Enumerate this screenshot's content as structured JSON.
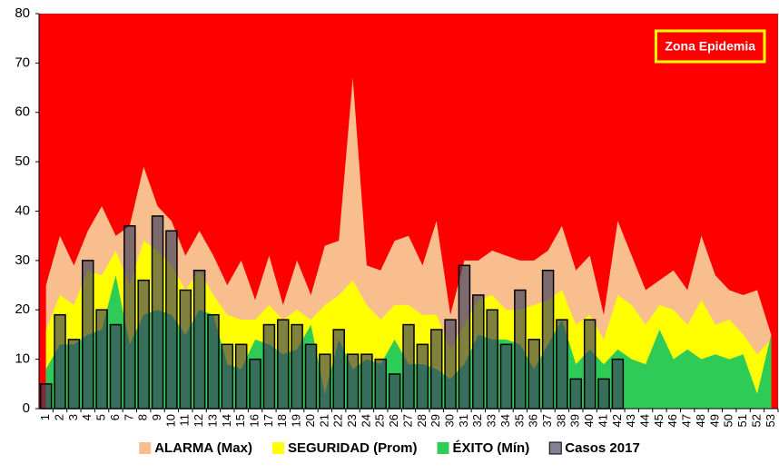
{
  "chart_data": {
    "type": "combo",
    "categories": [
      "1",
      "2",
      "3",
      "4",
      "5",
      "6",
      "7",
      "8",
      "9",
      "10",
      "11",
      "12",
      "13",
      "14",
      "15",
      "16",
      "17",
      "18",
      "19",
      "20",
      "21",
      "22",
      "23",
      "24",
      "25",
      "26",
      "27",
      "28",
      "29",
      "30",
      "31",
      "32",
      "33",
      "34",
      "35",
      "36",
      "37",
      "38",
      "39",
      "40",
      "41",
      "42",
      "43",
      "44",
      "45",
      "46",
      "47",
      "48",
      "49",
      "50",
      "51",
      "52",
      "53"
    ],
    "series": [
      {
        "name": "ALARMA (Max)",
        "type": "area",
        "color": "#f9be8e",
        "values": [
          25,
          35,
          29,
          36,
          41,
          35,
          37,
          49,
          41,
          38,
          31,
          36,
          31,
          25,
          30,
          22,
          31,
          21,
          30,
          23,
          33,
          34,
          67,
          29,
          28,
          34,
          35,
          29,
          38,
          19,
          30,
          30,
          32,
          31,
          30,
          30,
          32,
          37,
          28,
          31,
          19,
          38,
          31,
          24,
          26,
          28,
          24,
          35,
          27,
          24,
          23,
          24,
          15
        ]
      },
      {
        "name": "SEGURIDAD (Prom)",
        "type": "area",
        "color": "#ffff00",
        "values": [
          16,
          23,
          21,
          28,
          27,
          32,
          25,
          34,
          32,
          29,
          24,
          28,
          23,
          19,
          18,
          18,
          21,
          18,
          20,
          18,
          21,
          23,
          26,
          21,
          18,
          21,
          21,
          19,
          19,
          12,
          17,
          22,
          23,
          20,
          20,
          21,
          22,
          24,
          17,
          19,
          14,
          23,
          21,
          17,
          21,
          20,
          17,
          22,
          17,
          18,
          15,
          11,
          14
        ]
      },
      {
        "name": "ÉXITO (Mín)",
        "type": "area",
        "color": "#2fcb57",
        "values": [
          8,
          13,
          13,
          15,
          16,
          27,
          13,
          19,
          20,
          19,
          15,
          20,
          19,
          9,
          8,
          14,
          13,
          11,
          12,
          17,
          3,
          14,
          8,
          10,
          9,
          14,
          9,
          9,
          8,
          6,
          9,
          15,
          14,
          14,
          13,
          8,
          13,
          18,
          9,
          12,
          9,
          12,
          10,
          9,
          16,
          10,
          12,
          10,
          11,
          10,
          11,
          3,
          15
        ]
      },
      {
        "name": "Casos 2017",
        "type": "bar",
        "color": "#3c3d5c",
        "values": [
          5,
          19,
          14,
          30,
          20,
          17,
          37,
          26,
          39,
          36,
          24,
          28,
          19,
          13,
          13,
          10,
          17,
          18,
          17,
          13,
          11,
          16,
          11,
          11,
          10,
          7,
          17,
          13,
          16,
          18,
          29,
          23,
          20,
          13,
          24,
          14,
          28,
          18,
          6,
          18,
          6,
          10,
          null,
          null,
          null,
          null,
          null,
          null,
          null,
          null,
          null,
          null,
          null
        ]
      }
    ],
    "ylim": [
      0,
      80
    ],
    "yticks": [
      0,
      10,
      20,
      30,
      40,
      50,
      60,
      70,
      80
    ],
    "plot_background": "#ff0000",
    "annotation": "Zona Epidemia",
    "legend": "bottom"
  }
}
